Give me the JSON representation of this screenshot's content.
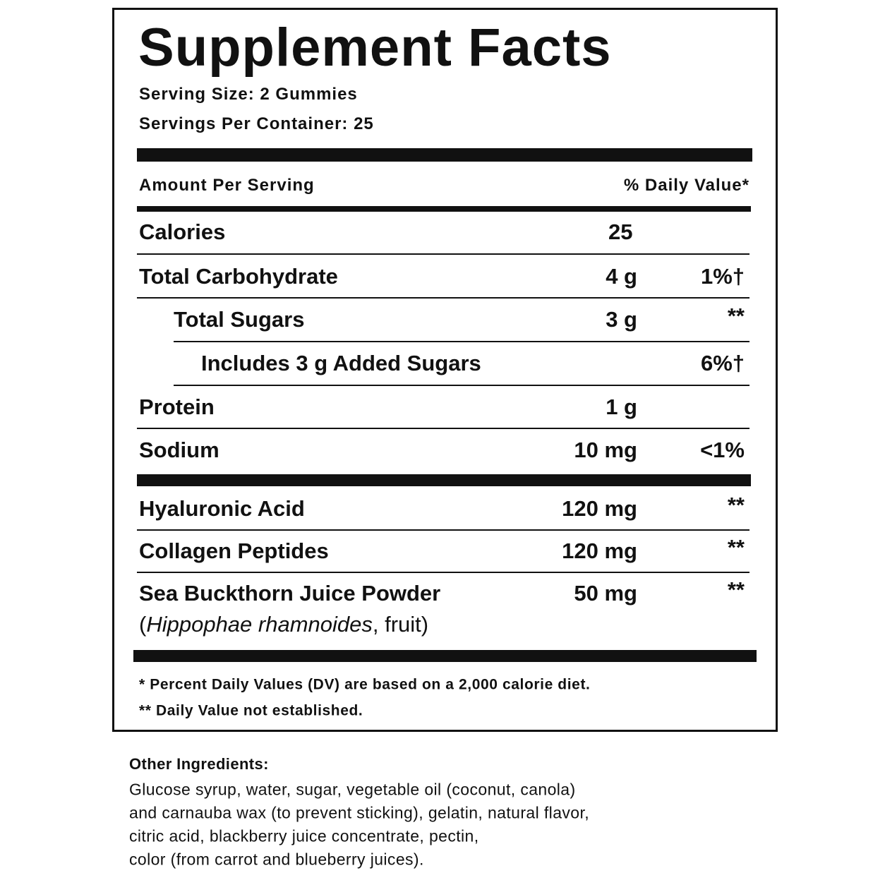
{
  "header": {
    "title": "Supplement Facts",
    "serving_size": "Serving Size: 2 Gummies",
    "servings_per_container": "Servings Per Container: 25"
  },
  "columns": {
    "amount": "Amount Per Serving",
    "daily_value": "% Daily Value*"
  },
  "rows": [
    {
      "name": "Calories",
      "amount": "25"
    },
    {
      "name": "Total Carbohydrate",
      "amount": "4 g",
      "dv": "1%†"
    },
    {
      "name": "Total Sugars",
      "amount": "3 g",
      "dv": "**"
    },
    {
      "name": "Includes 3 g Added Sugars",
      "dv": "6%†"
    },
    {
      "name": "Protein",
      "amount": "1 g"
    },
    {
      "name": "Sodium",
      "amount": "10 mg",
      "dv": "<1%"
    },
    {
      "name": "Hyaluronic Acid",
      "amount": "120 mg",
      "dv": "**"
    },
    {
      "name": "Collagen Peptides",
      "amount": "120 mg",
      "dv": "**"
    },
    {
      "name": "Sea Buckthorn Juice Powder",
      "amount": "50 mg",
      "dv": "**",
      "note": [
        "(",
        "Hippophae rhamnoides",
        ", fruit)"
      ]
    }
  ],
  "footnotes": [
    "* Percent Daily Values (DV) are based on a 2,000 calorie diet.",
    "** Daily Value not established."
  ],
  "other_ingredients": {
    "title": "Other Ingredients:",
    "lines": [
      "Glucose syrup, water, sugar, vegetable oil (coconut, canola)",
      "and carnauba wax (to prevent sticking), gelatin, natural flavor,",
      "citric acid, blackberry juice concentrate, pectin,",
      "color (from carrot and blueberry juices)."
    ]
  }
}
